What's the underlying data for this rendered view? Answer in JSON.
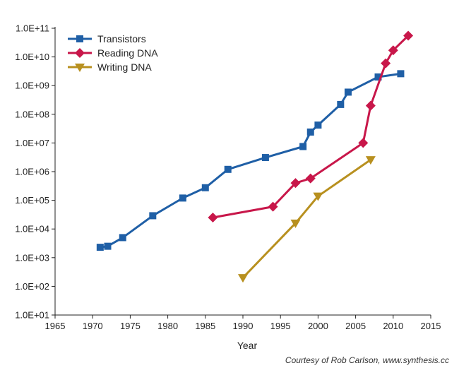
{
  "chart_data": {
    "type": "line",
    "xlabel": "Year",
    "ylabel": "",
    "xlim": [
      1965,
      2015
    ],
    "x_ticks": [
      1965,
      1970,
      1975,
      1980,
      1985,
      1990,
      1995,
      2000,
      2005,
      2010,
      2015
    ],
    "y_scale": "log",
    "ylim": [
      10,
      100000000000
    ],
    "y_ticks": [
      {
        "value": 10,
        "label": "1.0E+01"
      },
      {
        "value": 100,
        "label": "1.0E+02"
      },
      {
        "value": 1000,
        "label": "1.0E+03"
      },
      {
        "value": 10000,
        "label": "1.0E+04"
      },
      {
        "value": 100000,
        "label": "1.0E+05"
      },
      {
        "value": 1000000,
        "label": "1.0E+06"
      },
      {
        "value": 10000000,
        "label": "1.0E+07"
      },
      {
        "value": 100000000,
        "label": "1.0E+08"
      },
      {
        "value": 1000000000,
        "label": "1.0E+09"
      },
      {
        "value": 10000000000,
        "label": "1.0E+10"
      },
      {
        "value": 100000000000,
        "label": "1.0E+11"
      }
    ],
    "grid": false,
    "legend_position": "top-left",
    "series": [
      {
        "name": "Transistors",
        "color": "#1f5fa6",
        "marker": "square",
        "x": [
          1971,
          1972,
          1974,
          1978,
          1982,
          1985,
          1988,
          1993,
          1998,
          1999,
          2000,
          2003,
          2004,
          2008,
          2011
        ],
        "y": [
          2300,
          2500,
          5000,
          29000,
          120000,
          275000,
          1200000,
          3100000,
          7500000,
          24000000,
          42000000,
          220000000,
          592000000,
          2000000000,
          2600000000
        ]
      },
      {
        "name": "Reading DNA",
        "color": "#c8174a",
        "marker": "diamond",
        "x": [
          1986,
          1994,
          1997,
          1999,
          2006,
          2007,
          2009,
          2010,
          2012
        ],
        "y": [
          25000,
          60000,
          400000,
          580000,
          10000000,
          200000000,
          6000000000,
          17000000000,
          55000000000
        ]
      },
      {
        "name": "Writing DNA",
        "color": "#b8901f",
        "marker": "triangle-down",
        "x": [
          1990,
          1997,
          2000,
          2007
        ],
        "y": [
          200,
          16000,
          140000,
          2600000
        ]
      }
    ]
  },
  "credit": "Courtesy of Rob Carlson, www.synthesis.cc"
}
